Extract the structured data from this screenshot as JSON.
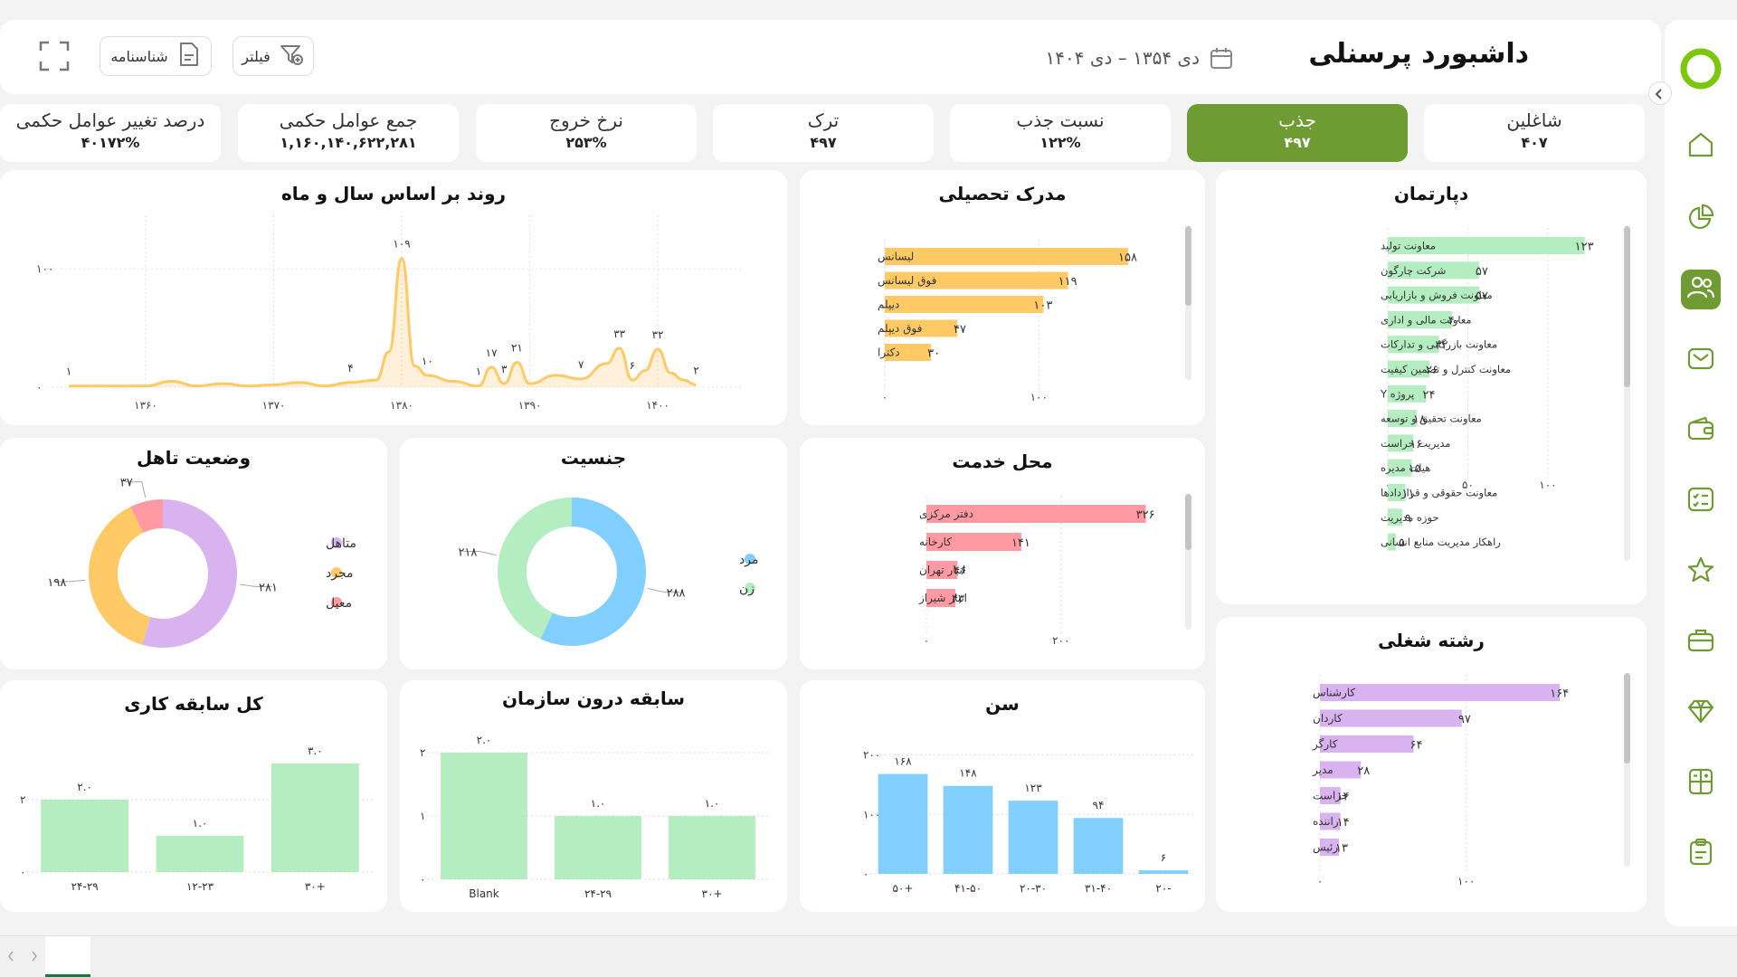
{
  "header": {
    "title": "داشبورد پرسنلی",
    "date_range": "دی ۱۳۵۴ – دی ۱۴۰۴",
    "filter_label": "فیلتر",
    "profile_label": "شناسنامه"
  },
  "kpis": [
    {
      "label": "شاغلین",
      "value": "۴۰۷"
    },
    {
      "label": "جذب",
      "value": "۴۹۷"
    },
    {
      "label": "نسبت جذب",
      "value": "۱۲۲%"
    },
    {
      "label": "ترک",
      "value": "۴۹۷"
    },
    {
      "label": "نرخ خروج",
      "value": "۲۵۳%"
    },
    {
      "label": "جمع عوامل حکمی",
      "value": "۱,۱۶۰,۱۴۰,۶۲۲,۲۸۱"
    },
    {
      "label": "درصد تغییر عوامل حکمی",
      "value": "۴۰۱۷۲%"
    }
  ],
  "colors": {
    "accent": "#6f9b33",
    "orange": "#ffc966",
    "pink": "#ff9aa2",
    "purple": "#d9b3f0",
    "green": "#b3edc0",
    "blue": "#80cfff",
    "line": "#ffc966"
  },
  "chart_data": [
    {
      "id": "department",
      "type": "bar",
      "title": "دپارتمان",
      "categories": [
        "معاونت تولید",
        "شرکت چارگون",
        "معاونت فروش و بازاریابی",
        "معاونت مالی و اداری",
        "معاونت بازرگانی و تدارکات",
        "معاونت کنترل و تضمین کیفیت",
        "پروژه Y",
        "معاونت تحقیق و توسعه",
        "مدیریت حراست",
        "هیات مدیره",
        "معاونت حقوقی و قراردادها",
        "حوزه مدیریت",
        "راهکار مدیریت منابع انسانی"
      ],
      "values": [
        123,
        57,
        57,
        40,
        32,
        26,
        24,
        18,
        16,
        15,
        11,
        9,
        5
      ],
      "labels": [
        "۱۲۳",
        "۵۷",
        "۵۷",
        "۴۰",
        "۳۲",
        "۲۶",
        "۲۴",
        "۱۸",
        "۱۶",
        "۱۵",
        "۱۱",
        "۹",
        "۵"
      ],
      "xlim": [
        0,
        130
      ],
      "ticks": [
        0,
        50,
        100
      ],
      "tick_labels": [
        "۰",
        "۵۰",
        "۱۰۰"
      ]
    },
    {
      "id": "education",
      "type": "bar",
      "title": "مدرک تحصیلی",
      "categories": [
        "لیسانس",
        "فوق لیسانس",
        "دیپلم",
        "فوق دیپلم",
        "دکترا"
      ],
      "values": [
        158,
        119,
        103,
        47,
        30
      ],
      "labels": [
        "۱۵۸",
        "۱۱۹",
        "۱۰۳",
        "۴۷",
        "۳۰"
      ],
      "xlim": [
        0,
        168
      ],
      "ticks": [
        0,
        100
      ],
      "tick_labels": [
        "۰",
        "۱۰۰"
      ]
    },
    {
      "id": "trend",
      "type": "area",
      "title": "روند بر اساس سال و ماه",
      "x": [
        1354,
        1356,
        1358,
        1360,
        1362,
        1364,
        1366,
        1368,
        1370,
        1372,
        1374,
        1376,
        1378,
        1379,
        1380,
        1381,
        1382,
        1384,
        1386,
        1387,
        1388,
        1389,
        1390,
        1392,
        1394,
        1396,
        1397,
        1398,
        1399,
        1400,
        1401,
        1402,
        1403
      ],
      "values": [
        1,
        1,
        1,
        1,
        5,
        1,
        3,
        1,
        2,
        4,
        1,
        4,
        6,
        30,
        109,
        18,
        10,
        5,
        1,
        17,
        3,
        21,
        3,
        10,
        7,
        20,
        33,
        6,
        14,
        32,
        12,
        6,
        2
      ],
      "point_labels": [
        {
          "x": 1354,
          "value": 1,
          "label": "۱"
        },
        {
          "x": 1376,
          "value": 4,
          "label": "۴"
        },
        {
          "x": 1380,
          "value": 109,
          "label": "۱۰۹"
        },
        {
          "x": 1382,
          "value": 10,
          "label": "۱۰"
        },
        {
          "x": 1386,
          "value": 1,
          "label": "۱"
        },
        {
          "x": 1387,
          "value": 17,
          "label": "۱۷"
        },
        {
          "x": 1388,
          "value": 3,
          "label": "۳"
        },
        {
          "x": 1389,
          "value": 21,
          "label": "۲۱"
        },
        {
          "x": 1394,
          "value": 7,
          "label": "۷"
        },
        {
          "x": 1397,
          "value": 33,
          "label": "۳۳"
        },
        {
          "x": 1398,
          "value": 6,
          "label": "۶"
        },
        {
          "x": 1400,
          "value": 32,
          "label": "۳۲"
        },
        {
          "x": 1403,
          "value": 2,
          "label": "۲"
        }
      ],
      "xlim": [
        1353,
        1406
      ],
      "ylim": [
        0,
        130
      ],
      "xticks": [
        1360,
        1370,
        1380,
        1390,
        1400
      ],
      "xtick_labels": [
        "۱۳۶۰",
        "۱۳۷۰",
        "۱۳۸۰",
        "۱۳۹۰",
        "۱۴۰۰"
      ],
      "yticks": [
        0,
        100
      ],
      "ytick_labels": [
        "۰",
        "۱۰۰"
      ]
    },
    {
      "id": "job",
      "type": "bar",
      "title": "رشته شغلی",
      "categories": [
        "کارشناس",
        "کاردان",
        "کارگر",
        "مدیر",
        "حراست",
        "راننده",
        "رئیس"
      ],
      "values": [
        164,
        97,
        64,
        28,
        14,
        14,
        13
      ],
      "labels": [
        "۱۶۴",
        "۹۷",
        "۶۴",
        "۲۸",
        "۱۴",
        "۱۴",
        "۱۳"
      ],
      "xlim": [
        0,
        175
      ],
      "ticks": [
        0,
        100
      ],
      "tick_labels": [
        "۰",
        "۱۰۰"
      ]
    },
    {
      "id": "location",
      "type": "bar",
      "title": "محل خدمت",
      "categories": [
        "دفتر مرکزی",
        "کارخانه",
        "انبار تهران",
        "انبار شیراز"
      ],
      "values": [
        326,
        141,
        46,
        43
      ],
      "labels": [
        "۳۲۶",
        "۱۴۱",
        "۴۶",
        "۴۳"
      ],
      "xlim": [
        0,
        340
      ],
      "ticks": [
        0,
        200
      ],
      "tick_labels": [
        "۰",
        "۲۰۰"
      ]
    },
    {
      "id": "gender",
      "type": "pie",
      "title": "جنسیت",
      "categories": [
        "مرد",
        "زن"
      ],
      "values": [
        288,
        218
      ],
      "labels": [
        "۲۸۸",
        "۲۱۸"
      ]
    },
    {
      "id": "marital",
      "type": "pie",
      "title": "وضعیت تاهل",
      "categories": [
        "متاهل",
        "مجرد",
        "معیل"
      ],
      "values": [
        281,
        198,
        37
      ],
      "labels": [
        "۲۸۱",
        "۱۹۸",
        "۳۷"
      ]
    },
    {
      "id": "age",
      "type": "bar",
      "title": "سن",
      "categories": [
        "+۵۰",
        "۴۱-۵۰",
        "۲۰-۳۰",
        "۳۱-۴۰",
        "-۲۰"
      ],
      "values": [
        168,
        148,
        123,
        94,
        6
      ],
      "labels": [
        "۱۶۸",
        "۱۴۸",
        "۱۲۳",
        "۹۴",
        "۶"
      ],
      "ylim": [
        0,
        210
      ],
      "ticks": [
        0,
        100,
        200
      ],
      "tick_labels": [
        "۰",
        "۱۰۰",
        "۲۰۰"
      ]
    },
    {
      "id": "org_tenure",
      "type": "bar",
      "title": "سابقه درون سازمان",
      "categories": [
        "Blank",
        "۲۴-۲۹",
        "+۳۰"
      ],
      "values": [
        2.0,
        1.0,
        1.0
      ],
      "labels": [
        "۲.۰",
        "۱.۰",
        "۱.۰"
      ],
      "ylim": [
        0,
        2.2
      ],
      "ticks": [
        0,
        1,
        2
      ],
      "tick_labels": [
        "۰",
        "۱",
        "۲"
      ]
    },
    {
      "id": "total_tenure",
      "type": "bar",
      "title": "کل سابقه کاری",
      "categories": [
        "۲۴-۲۹",
        "۱۲-۲۳",
        "+۳۰"
      ],
      "values": [
        2.0,
        1.0,
        3.0
      ],
      "labels": [
        "۲.۰",
        "۱.۰",
        "۳.۰"
      ],
      "ylim": [
        0,
        3.3
      ],
      "ticks": [
        0,
        2
      ],
      "tick_labels": [
        "۰",
        "۲"
      ]
    }
  ]
}
